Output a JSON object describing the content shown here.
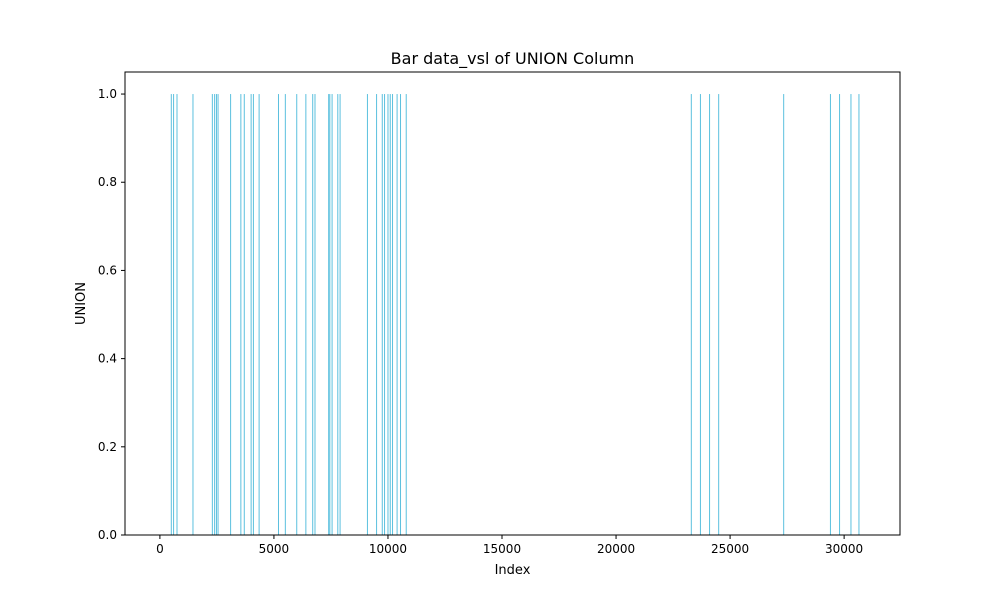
{
  "chart_data": {
    "type": "bar",
    "title": "Bar data_vsl of UNION Column",
    "xlabel": "Index",
    "ylabel": "UNION",
    "xlim": [
      -1530,
      32450
    ],
    "ylim": [
      0,
      1.05
    ],
    "xticks": [
      0,
      5000,
      10000,
      15000,
      20000,
      25000,
      30000
    ],
    "xtick_labels": [
      "0",
      "5000",
      "10000",
      "15000",
      "20000",
      "25000",
      "30000"
    ],
    "yticks": [
      0.0,
      0.2,
      0.4,
      0.6,
      0.8,
      1.0
    ],
    "ytick_labels": [
      "0.0",
      "0.2",
      "0.4",
      "0.6",
      "0.8",
      "1.0"
    ],
    "grid": false,
    "bar_color": "#5bc0de",
    "series": [
      {
        "x": [
          500,
          600,
          750,
          1450,
          2300,
          2400,
          2480,
          2550,
          3100,
          3550,
          3700,
          4000,
          4100,
          4350,
          5200,
          5500,
          6000,
          6400,
          6700,
          6800,
          7400,
          7450,
          7550,
          7800,
          7900,
          9100,
          9500,
          9750,
          9850,
          10000,
          10100,
          10200,
          10400,
          10550,
          10800,
          23300,
          23700,
          24100,
          24500,
          27350,
          29400,
          29800,
          30300,
          30650
        ],
        "values": [
          1,
          1,
          1,
          1,
          1,
          1,
          1,
          1,
          1,
          1,
          1,
          1,
          1,
          1,
          1,
          1,
          1,
          1,
          1,
          1,
          1,
          1,
          1,
          1,
          1,
          1,
          1,
          1,
          1,
          1,
          1,
          1,
          1,
          1,
          1,
          1,
          1,
          1,
          1,
          1,
          1,
          1,
          1,
          1
        ]
      }
    ]
  }
}
